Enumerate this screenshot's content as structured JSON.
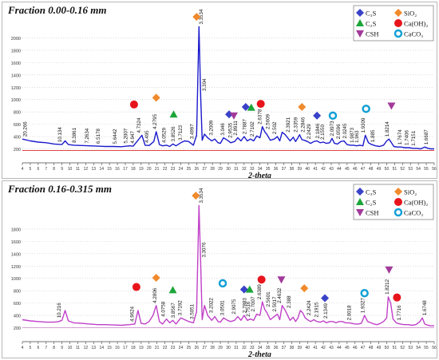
{
  "figure": {
    "legend_items": [
      {
        "label": "C₃S",
        "marker": "diamond",
        "color": "#3a42c8"
      },
      {
        "label": "SiO₂",
        "marker": "diamond",
        "color": "#f08a2c"
      },
      {
        "label": "C₂S",
        "marker": "triangle",
        "color": "#1ca63a"
      },
      {
        "label": "Ca(OH)₂",
        "marker": "circle",
        "color": "#e8141c"
      },
      {
        "label": "CSH",
        "marker": "inverted-triangle",
        "color": "#a23a9a"
      },
      {
        "label": "CaCO₃",
        "marker": "ring",
        "color": "#14a0d6"
      }
    ]
  },
  "chart_data": [
    {
      "type": "line",
      "title": "Fraction 0.00-0.16 mm",
      "xlabel": "2-theta",
      "ylabel": "",
      "line_color": "#1a1acc",
      "xlim": [
        4,
        56
      ],
      "ylim": [
        0,
        2200
      ],
      "x_ticks": [
        4,
        5,
        6,
        7,
        8,
        9,
        10,
        11,
        12,
        13,
        14,
        15,
        16,
        17,
        18,
        19,
        20,
        21,
        22,
        23,
        24,
        25,
        26,
        27,
        28,
        29,
        30,
        31,
        32,
        33,
        34,
        35,
        36,
        37,
        38,
        39,
        40,
        41,
        42,
        43,
        44,
        45,
        46,
        47,
        48,
        49,
        50,
        51,
        52,
        53,
        54,
        55,
        56
      ],
      "y_ticks": [
        200,
        400,
        600,
        800,
        1000,
        1200,
        1400,
        1600,
        1800,
        2000
      ],
      "grid": "horizontal-dotted",
      "legend_position": "top-right",
      "baseline": {
        "color": "#e04545",
        "y": 175
      },
      "series": [
        {
          "x": [
            4.0,
            5.0,
            6.0,
            7.0,
            7.5,
            8.0,
            9.0,
            9.4,
            9.8,
            10.5,
            11.5,
            12.5,
            13.5,
            14.5,
            15.5,
            16.5,
            17.5,
            18.0,
            18.6,
            19.1,
            19.5,
            20.0,
            20.6,
            20.9,
            21.3,
            21.7,
            22.2,
            22.6,
            23.0,
            23.4,
            24.0,
            24.5,
            25.0,
            25.6,
            26.0,
            26.3,
            26.5,
            26.7,
            27.0,
            27.4,
            27.9,
            28.3,
            28.7,
            29.0,
            29.4,
            29.9,
            30.3,
            30.8,
            31.2,
            31.6,
            32.0,
            32.4,
            32.8,
            33.2,
            33.6,
            34.0,
            34.3,
            34.6,
            34.9,
            35.3,
            35.8,
            36.2,
            36.5,
            36.8,
            37.2,
            37.8,
            38.2,
            38.5,
            38.8,
            39.0,
            39.3,
            39.6,
            40.0,
            40.4,
            40.8,
            41.2,
            41.6,
            42.0,
            42.4,
            42.8,
            43.1,
            43.4,
            43.8,
            44.2,
            44.6,
            45.0,
            45.4,
            45.8,
            46.2,
            46.6,
            47.0,
            47.3,
            47.7,
            48.1,
            48.6,
            49.1,
            49.6,
            50.0,
            50.3,
            50.6,
            50.9,
            51.3,
            51.8,
            52.3,
            52.8,
            53.3,
            53.8,
            54.3,
            54.8,
            55.2,
            55.6,
            56.0
          ],
          "y": [
            360,
            330,
            310,
            300,
            290,
            280,
            270,
            330,
            270,
            260,
            255,
            250,
            245,
            240,
            240,
            235,
            250,
            245,
            340,
            420,
            260,
            255,
            320,
            480,
            270,
            250,
            260,
            240,
            280,
            250,
            300,
            330,
            320,
            260,
            420,
            2180,
            1100,
            340,
            440,
            380,
            330,
            360,
            300,
            290,
            380,
            340,
            300,
            320,
            380,
            330,
            400,
            330,
            360,
            330,
            410,
            380,
            560,
            480,
            430,
            340,
            360,
            400,
            330,
            470,
            430,
            330,
            390,
            320,
            380,
            430,
            350,
            340,
            320,
            290,
            320,
            330,
            300,
            310,
            290,
            300,
            370,
            290,
            280,
            320,
            330,
            270,
            260,
            260,
            250,
            260,
            250,
            420,
            300,
            270,
            250,
            240,
            260,
            330,
            360,
            300,
            240,
            230,
            230,
            220,
            220,
            210,
            210,
            200,
            230,
            210,
            200,
            200
          ]
        }
      ],
      "peak_labels": [
        "20.266",
        "10.134",
        "8.3861",
        "7.2634",
        "6.5178",
        "5.6442",
        "5.2007",
        "4.947",
        "4.7324",
        "4.495",
        "4.2795",
        "4.0529",
        "3.8526",
        "3.7123",
        "3.4997",
        "3.3534",
        "3.304",
        "3.2009",
        "3.046",
        "2.9535",
        "2.8911",
        "2.7887",
        "2.7102",
        "2.6378",
        "2.5609",
        "2.502",
        "2.3921",
        "2.3359",
        "2.2846",
        "2.2429",
        "2.1846",
        "2.1550",
        "2.0973",
        "2.0596",
        "2.0245",
        "1.9873",
        "1.9309",
        "1.885",
        "1.8214",
        "1.7674",
        "1.7406",
        "1.7151",
        "1.963",
        "1.6687"
      ],
      "phase_markers": [
        {
          "phase": "Ca(OH)₂",
          "x": 18.1,
          "y": 920
        },
        {
          "phase": "SiO₂",
          "x": 20.9,
          "y": 1030
        },
        {
          "phase": "C₂S",
          "x": 23.1,
          "y": 760
        },
        {
          "phase": "SiO₂",
          "x": 26.0,
          "y": 2340
        },
        {
          "phase": "C₃S",
          "x": 30.1,
          "y": 760
        },
        {
          "phase": "CSH",
          "x": 30.7,
          "y": 740
        },
        {
          "phase": "C₃S",
          "x": 32.2,
          "y": 880
        },
        {
          "phase": "C₂S",
          "x": 32.9,
          "y": 870
        },
        {
          "phase": "Ca(OH)₂",
          "x": 34.1,
          "y": 930
        },
        {
          "phase": "SiO₂",
          "x": 39.3,
          "y": 880
        },
        {
          "phase": "C₃S",
          "x": 41.2,
          "y": 740
        },
        {
          "phase": "CaCO₃",
          "x": 43.2,
          "y": 740
        },
        {
          "phase": "CaCO₃",
          "x": 47.4,
          "y": 850
        },
        {
          "phase": "CSH",
          "x": 50.6,
          "y": 900
        }
      ]
    },
    {
      "type": "line",
      "title": "Fraction 0.16-0.315 mm",
      "xlabel": "2-theta",
      "ylabel": "",
      "line_color": "#c040c8",
      "xlim": [
        4,
        56
      ],
      "ylim": [
        0,
        2200
      ],
      "x_ticks": [
        4,
        5,
        6,
        7,
        8,
        9,
        10,
        11,
        12,
        13,
        14,
        15,
        16,
        17,
        18,
        19,
        20,
        21,
        22,
        23,
        24,
        25,
        26,
        27,
        28,
        29,
        30,
        31,
        32,
        33,
        34,
        35,
        36,
        37,
        38,
        39,
        40,
        41,
        42,
        43,
        44,
        45,
        46,
        47,
        48,
        49,
        50,
        51,
        52,
        53,
        54,
        55,
        56
      ],
      "y_ticks": [
        200,
        400,
        600,
        800,
        1000,
        1200,
        1400,
        1600,
        1800
      ],
      "grid": "horizontal-dotted",
      "legend_position": "top-right",
      "baseline": {
        "color": "#d4a0d4",
        "y": 200
      },
      "series": [
        {
          "x": [
            4.0,
            5.0,
            6.0,
            7.0,
            8.0,
            8.6,
            9.0,
            9.4,
            9.8,
            10.5,
            11.5,
            12.5,
            13.5,
            14.5,
            15.5,
            16.5,
            17.5,
            18.2,
            18.6,
            19.0,
            19.5,
            20.0,
            20.5,
            20.9,
            21.3,
            21.7,
            22.2,
            22.6,
            23.0,
            23.4,
            24.0,
            24.5,
            25.0,
            25.6,
            26.0,
            26.3,
            26.5,
            26.7,
            27.0,
            27.4,
            27.9,
            28.3,
            28.7,
            29.0,
            29.4,
            29.9,
            30.3,
            30.8,
            31.2,
            31.6,
            32.0,
            32.4,
            32.8,
            33.2,
            33.6,
            34.0,
            34.3,
            34.6,
            34.9,
            35.3,
            35.8,
            36.2,
            36.5,
            36.8,
            37.2,
            37.8,
            38.2,
            38.5,
            38.8,
            39.1,
            39.4,
            39.7,
            40.0,
            40.4,
            40.8,
            41.2,
            41.6,
            42.0,
            42.4,
            42.8,
            43.2,
            43.6,
            44.0,
            44.4,
            44.8,
            45.2,
            45.6,
            46.0,
            46.4,
            46.8,
            47.2,
            47.6,
            48.0,
            48.4,
            48.8,
            49.2,
            49.6,
            50.0,
            50.2,
            50.5,
            50.8,
            51.2,
            51.7,
            52.2,
            52.7,
            53.2,
            53.7,
            54.2,
            54.5,
            54.8,
            55.2,
            55.6,
            56.0
          ],
          "y": [
            330,
            310,
            300,
            290,
            290,
            300,
            320,
            480,
            310,
            280,
            270,
            260,
            250,
            250,
            245,
            240,
            250,
            260,
            480,
            270,
            260,
            300,
            400,
            560,
            300,
            260,
            340,
            280,
            320,
            260,
            360,
            330,
            300,
            280,
            460,
            2180,
            1300,
            330,
            560,
            400,
            320,
            380,
            300,
            290,
            360,
            320,
            300,
            320,
            380,
            320,
            400,
            320,
            340,
            320,
            420,
            400,
            620,
            500,
            440,
            330,
            380,
            420,
            330,
            560,
            480,
            320,
            370,
            300,
            360,
            480,
            440,
            360,
            330,
            300,
            330,
            300,
            290,
            310,
            280,
            300,
            300,
            280,
            300,
            300,
            280,
            280,
            270,
            260,
            260,
            270,
            400,
            300,
            280,
            260,
            250,
            270,
            300,
            360,
            700,
            600,
            340,
            280,
            260,
            250,
            250,
            240,
            250,
            300,
            360,
            260,
            240,
            230,
            230
          ]
        }
      ],
      "peak_labels": [
        "10.216",
        "4.9624",
        "4.2806",
        "4.0758",
        "3.8567",
        "3.7192",
        "3.5051",
        "3.3534",
        "3.3076",
        "3.2022",
        "3.0501",
        "2.9075",
        "2.7883",
        "2.7516",
        "2.7007",
        "2.6389",
        "2.5601",
        "2.5017",
        "2.4632",
        "2.388",
        "2.2424",
        "2.1915",
        "2.1349",
        "2.0018",
        "1.9327",
        "1.8212",
        "1.7716",
        "1.6748"
      ],
      "phase_markers": [
        {
          "phase": "Ca(OH)₂",
          "x": 18.4,
          "y": 860
        },
        {
          "phase": "SiO₂",
          "x": 20.9,
          "y": 1010
        },
        {
          "phase": "C₂S",
          "x": 23.0,
          "y": 810
        },
        {
          "phase": "SiO₂",
          "x": 25.9,
          "y": 2340
        },
        {
          "phase": "CaCO₃",
          "x": 29.3,
          "y": 920
        },
        {
          "phase": "C₃S",
          "x": 32.0,
          "y": 820
        },
        {
          "phase": "C₂S",
          "x": 32.7,
          "y": 820
        },
        {
          "phase": "Ca(OH)₂",
          "x": 34.2,
          "y": 980
        },
        {
          "phase": "CSH",
          "x": 36.7,
          "y": 980
        },
        {
          "phase": "SiO₂",
          "x": 39.6,
          "y": 840
        },
        {
          "phase": "C₃S",
          "x": 42.2,
          "y": 680
        },
        {
          "phase": "CaCO₃",
          "x": 47.2,
          "y": 760
        },
        {
          "phase": "CSH",
          "x": 50.3,
          "y": 1140
        },
        {
          "phase": "Ca(OH)₂",
          "x": 51.3,
          "y": 690
        }
      ]
    }
  ]
}
